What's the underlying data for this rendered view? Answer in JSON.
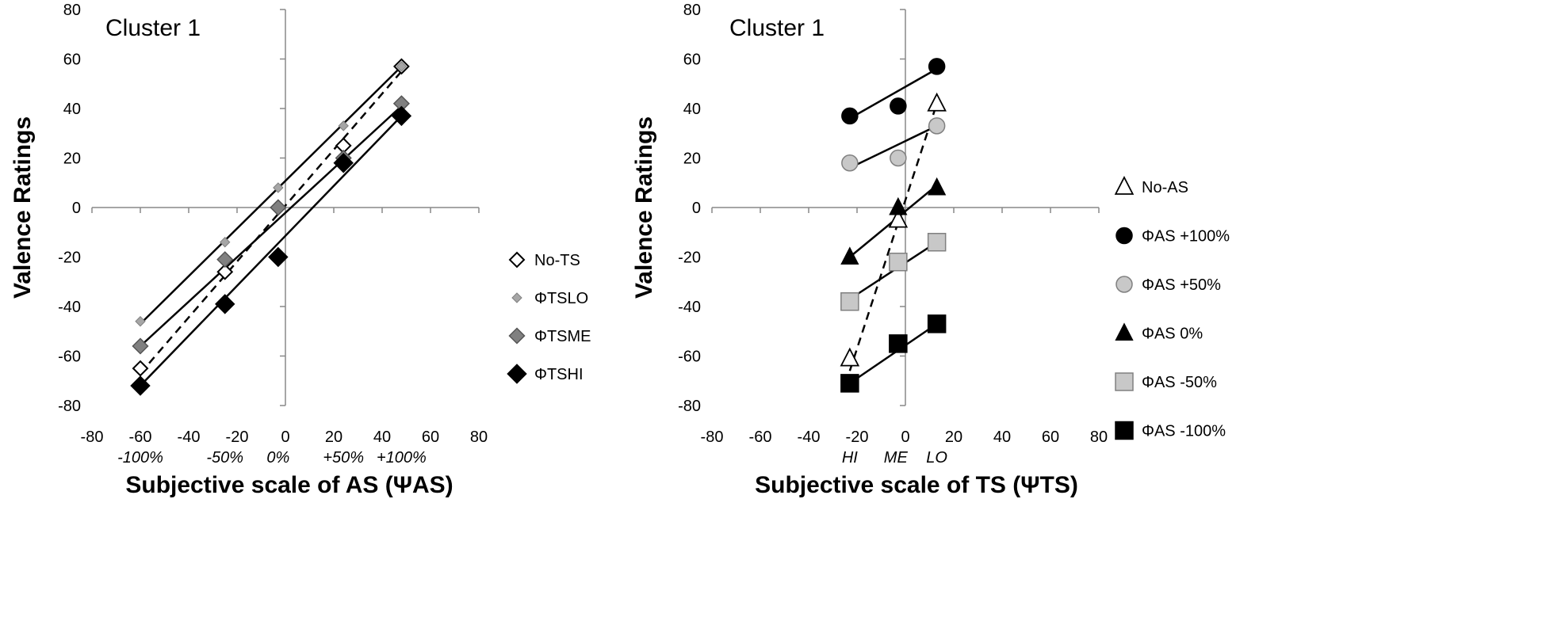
{
  "chart_data": [
    {
      "type": "scatter",
      "title": "Cluster 1",
      "xlabel": "Subjective scale of AS (ΨAS)",
      "ylabel": "Valence Ratings",
      "xlim": [
        -80,
        80
      ],
      "ylim": [
        -80,
        80
      ],
      "xticks": [
        -80,
        -60,
        -40,
        -20,
        0,
        20,
        40,
        60,
        80
      ],
      "yticks": [
        -80,
        -60,
        -40,
        -20,
        0,
        20,
        40,
        60,
        80
      ],
      "category_labels": [
        {
          "x": -60,
          "label": "-100%"
        },
        {
          "x": -25,
          "label": "-50%"
        },
        {
          "x": -3,
          "label": "0%"
        },
        {
          "x": 24,
          "label": "+50%"
        },
        {
          "x": 48,
          "label": "+100%"
        }
      ],
      "legend_position": "right",
      "series": [
        {
          "name": "No-TS",
          "marker": "diamond-open",
          "line": "dashed",
          "x": [
            -60,
            -25,
            -3,
            24,
            48
          ],
          "y": [
            -65,
            -26,
            0,
            25,
            57
          ],
          "fit": [
            [
              -60,
              -67
            ],
            [
              48,
              55
            ]
          ]
        },
        {
          "name": "ΦTSLO",
          "marker": "diamond-small-gray",
          "line": "solid",
          "x": [
            -60,
            -25,
            -3,
            24,
            48
          ],
          "y": [
            -46,
            -14,
            8,
            33,
            57
          ],
          "fit": [
            [
              -60,
              -47
            ],
            [
              48,
              57
            ]
          ]
        },
        {
          "name": "ΦTSME",
          "marker": "diamond-gray",
          "line": "solid",
          "x": [
            -60,
            -25,
            -3,
            24,
            48
          ],
          "y": [
            -56,
            -21,
            0,
            20,
            42
          ],
          "fit": [
            [
              -60,
              -56
            ],
            [
              48,
              41
            ]
          ]
        },
        {
          "name": "ΦTSHI",
          "marker": "diamond-black",
          "line": "solid",
          "x": [
            -60,
            -25,
            -3,
            24,
            48
          ],
          "y": [
            -72,
            -39,
            -20,
            18,
            37
          ],
          "fit": [
            [
              -60,
              -72
            ],
            [
              48,
              37
            ]
          ]
        }
      ]
    },
    {
      "type": "scatter",
      "title": "Cluster 1",
      "xlabel": "Subjective scale of TS (ΨTS)",
      "ylabel": "Valence Ratings",
      "xlim": [
        -80,
        80
      ],
      "ylim": [
        -80,
        80
      ],
      "xticks": [
        -80,
        -60,
        -40,
        -20,
        0,
        20,
        40,
        60,
        80
      ],
      "yticks": [
        -80,
        -60,
        -40,
        -20,
        0,
        20,
        40,
        60,
        80
      ],
      "category_labels": [
        {
          "x": -23,
          "label": "HI"
        },
        {
          "x": -4,
          "label": "ME"
        },
        {
          "x": 13,
          "label": "LO"
        }
      ],
      "legend_position": "right",
      "series": [
        {
          "name": "No-AS",
          "marker": "triangle-open",
          "line": "dashed",
          "x": [
            -23,
            -3,
            13
          ],
          "y": [
            -61,
            -5,
            42
          ],
          "fit": [
            [
              -23,
              -66
            ],
            [
              13,
              42
            ]
          ]
        },
        {
          "name": "ΦAS +100%",
          "marker": "circle-black",
          "line": "solid",
          "x": [
            -23,
            -3,
            13
          ],
          "y": [
            37,
            41,
            57
          ],
          "fit": [
            [
              -23,
              36
            ],
            [
              13,
              56
            ]
          ]
        },
        {
          "name": "ΦAS +50%",
          "marker": "circle-gray",
          "line": "solid",
          "x": [
            -23,
            -3,
            13
          ],
          "y": [
            18,
            20,
            33
          ],
          "fit": [
            [
              -23,
              16
            ],
            [
              13,
              33
            ]
          ]
        },
        {
          "name": "ΦAS 0%",
          "marker": "triangle-black",
          "line": "solid",
          "x": [
            -23,
            -3,
            13
          ],
          "y": [
            -20,
            0,
            8
          ],
          "fit": [
            [
              -23,
              -20
            ],
            [
              13,
              9
            ]
          ]
        },
        {
          "name": "ΦAS -50%",
          "marker": "square-gray",
          "line": "solid",
          "x": [
            -23,
            -3,
            13
          ],
          "y": [
            -38,
            -22,
            -14
          ],
          "fit": [
            [
              -23,
              -37
            ],
            [
              13,
              -14
            ]
          ]
        },
        {
          "name": "ΦAS -100%",
          "marker": "square-black",
          "line": "solid",
          "x": [
            -23,
            -3,
            13
          ],
          "y": [
            -71,
            -55,
            -47
          ],
          "fit": [
            [
              -23,
              -71
            ],
            [
              13,
              -47
            ]
          ]
        }
      ]
    }
  ]
}
